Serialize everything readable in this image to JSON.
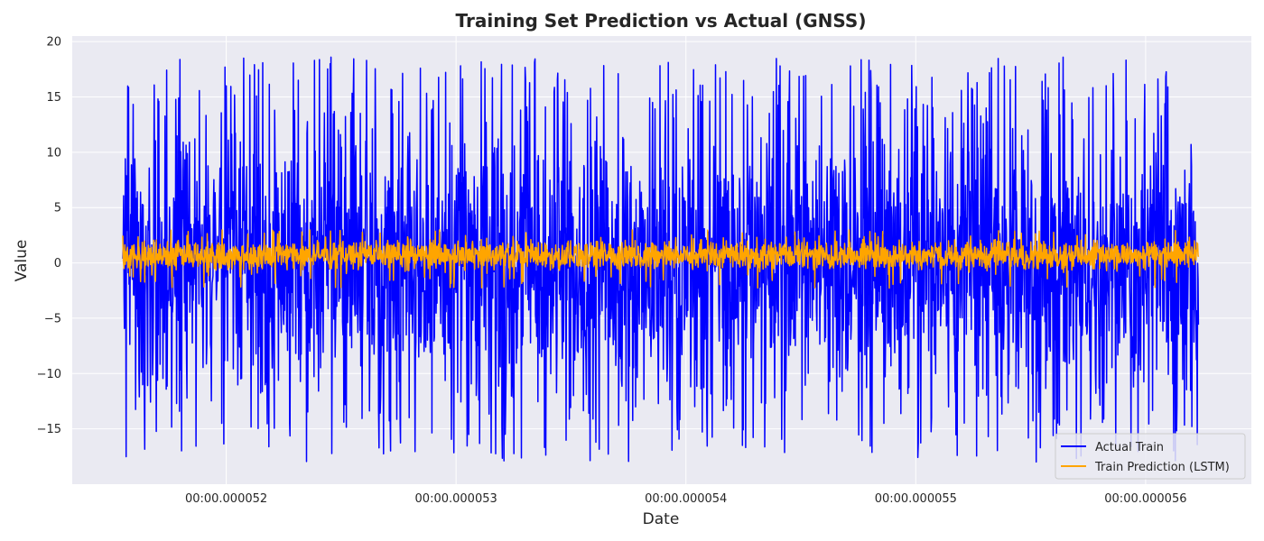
{
  "chart_data": {
    "type": "line",
    "title": "Training Set Prediction vs Actual (GNSS)",
    "xlabel": "Date",
    "ylabel": "Value",
    "x_tick_labels": [
      "00:00.000052",
      "00:00.000053",
      "00:00.000054",
      "00:00.000055",
      "00:00.000056"
    ],
    "x_tick_values": [
      52,
      53,
      54,
      55,
      56
    ],
    "xlim": [
      51.33,
      56.46
    ],
    "y_ticks": [
      -15,
      -10,
      -5,
      0,
      5,
      10,
      15,
      20
    ],
    "y_tick_labels": [
      "−15",
      "−10",
      "−5",
      "0",
      "5",
      "10",
      "15",
      "20"
    ],
    "ylim": [
      -20,
      20.5
    ],
    "x_data_range": [
      51.55,
      56.23
    ],
    "grid": true,
    "legend_position": "lower-right",
    "series": [
      {
        "name": "Actual Train",
        "color": "#0000ff",
        "baseline": 0,
        "upper_range": [
          8,
          18.6
        ],
        "lower_range": [
          -18,
          -6
        ]
      },
      {
        "name": "Train Prediction (LSTM)",
        "color": "#ffa500",
        "baseline": 0.7,
        "range": [
          -2.3,
          3.0
        ]
      }
    ]
  }
}
